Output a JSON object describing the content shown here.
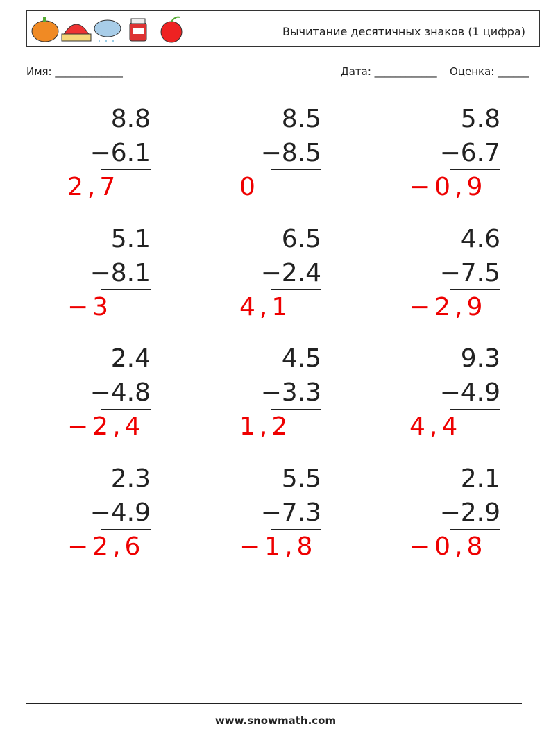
{
  "header": {
    "title": "Вычитание десятичных знаков (1 цифра)"
  },
  "fields": {
    "name": "Имя: _____________",
    "date": "Дата: ____________",
    "grade": "Оценка: ______"
  },
  "problems": [
    {
      "top": "8.8",
      "bottom": "−6.1",
      "answer": "2,7"
    },
    {
      "top": "8.5",
      "bottom": "−8.5",
      "answer": "0"
    },
    {
      "top": "5.8",
      "bottom": "−6.7",
      "answer": "−0,9"
    },
    {
      "top": "5.1",
      "bottom": "−8.1",
      "answer": "−3"
    },
    {
      "top": "6.5",
      "bottom": "−2.4",
      "answer": "4,1"
    },
    {
      "top": "4.6",
      "bottom": "−7.5",
      "answer": "−2,9"
    },
    {
      "top": "2.4",
      "bottom": "−4.8",
      "answer": "−2,4"
    },
    {
      "top": "4.5",
      "bottom": "−3.3",
      "answer": "1,2"
    },
    {
      "top": "9.3",
      "bottom": "−4.9",
      "answer": "4,4"
    },
    {
      "top": "2.3",
      "bottom": "−4.9",
      "answer": "−2,6"
    },
    {
      "top": "5.5",
      "bottom": "−7.3",
      "answer": "−1,8"
    },
    {
      "top": "2.1",
      "bottom": "−2.9",
      "answer": "−0,8"
    }
  ],
  "footer": "www.snowmath.com"
}
